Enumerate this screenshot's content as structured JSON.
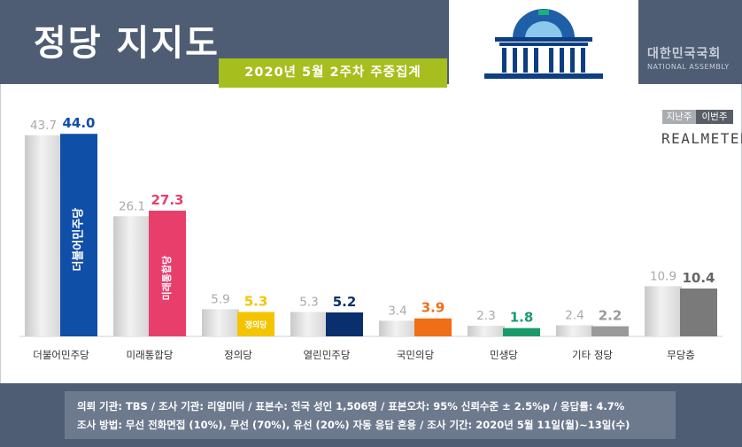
{
  "title": "정당 지지도",
  "period": "2020년 5월 2주차 주중집계",
  "assembly": {
    "name_ko": "대한민국국회",
    "name_en": "NATIONAL ASSEMBLY"
  },
  "brand": "REALMETER",
  "chart_data": {
    "type": "bar",
    "categories": [
      "더불어민주당",
      "미래통합당",
      "정의당",
      "열린민주당",
      "국민의당",
      "민생당",
      "기타 정당",
      "무당층"
    ],
    "series": [
      {
        "name": "지난주",
        "values": [
          43.7,
          26.1,
          5.9,
          5.3,
          3.4,
          2.3,
          2.4,
          10.9
        ]
      },
      {
        "name": "이번주",
        "values": [
          44.0,
          27.3,
          5.3,
          5.2,
          3.9,
          1.8,
          2.2,
          10.4
        ]
      }
    ],
    "ylim": [
      0,
      45
    ],
    "grid": false,
    "legend": "top-right",
    "colors": {
      "previous": "#dcdcdc",
      "previous_label": "#a9a9a9",
      "current": [
        "#0f4fa8",
        "#e83e6c",
        "#f5c400",
        "#0a2f6e",
        "#ef6e16",
        "#1a9b6b",
        "#9a9a9a",
        "#7a7a7a"
      ],
      "current_label": [
        "#0f4fa8",
        "#e83e6c",
        "#f5c400",
        "#0a2f6e",
        "#ef6e16",
        "#1a9b6b",
        "#9a9a9a",
        "#666666"
      ]
    },
    "bar_logos": [
      "더불어민주당",
      "미래통합당",
      "정의당",
      "",
      "",
      "",
      "",
      ""
    ]
  },
  "legend": {
    "previous": "지난주",
    "current": "이번주"
  },
  "footer": {
    "line1": "의뢰 기관:  TBS  /  조사 기관:  리얼미터  /  표본수:  전국 성인 1,506명  /  표본오차:  95% 신뢰수준 ± 2.5%p  /  응답률:  4.7%",
    "line2": "조사 방법:  무선 전화면접 (10%), 무선 (70%), 유선 (20%)  자동 응답 혼용  /  조사 기간:  2020년 5월 11일(월)~13일(수)"
  }
}
